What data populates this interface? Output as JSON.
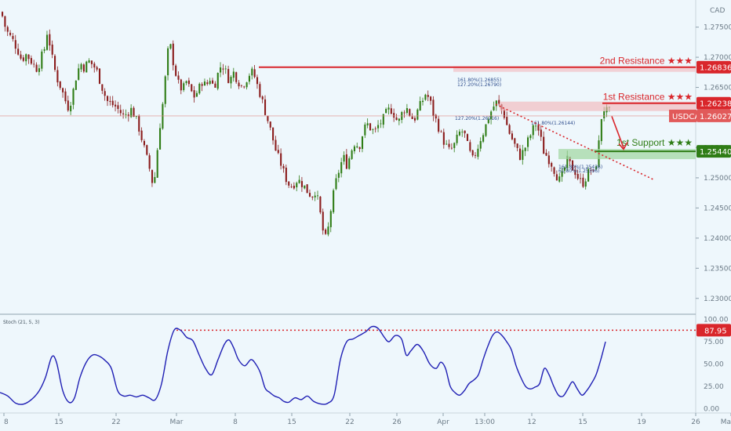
{
  "chart_data": {
    "type": "candlestick",
    "currency": "CAD",
    "symbol": "USDCAD",
    "ylim": [
      1.2275,
      1.2795
    ],
    "y_ticks": [
      "1.27500",
      "1.27000",
      "1.26500",
      "1.26000",
      "1.25500",
      "1.25000",
      "1.24500",
      "1.24000",
      "1.23500",
      "1.23000"
    ],
    "x_ticks": [
      "8",
      "15",
      "22",
      "Mar",
      "8",
      "15",
      "22",
      "26",
      "Apr",
      "13:00",
      "12",
      "15",
      "19",
      "26",
      "Ma"
    ],
    "levels": [
      {
        "name": "2nd Resistance ★★★",
        "value": "1.26836",
        "color": "#d9262b"
      },
      {
        "name": "1st Resistance ★★★",
        "value": "1.26238",
        "color": "#d9262b"
      },
      {
        "name": "1st Support ★★★",
        "value": "1.25440",
        "color": "#2f7d16"
      }
    ],
    "current_price": {
      "label": "USDCAD",
      "value": "1.26027"
    },
    "fib_labels": [
      "161.80%(1.26855)",
      "127.20%(1.26790)",
      "127.20%(1.26216)",
      "161.80%(1.26144)",
      "161.80%(1.25436)",
      "61.80%(1.25396)"
    ],
    "price_path": [
      [
        0,
        1.2775
      ],
      [
        5,
        1.277
      ],
      [
        10,
        1.2745
      ],
      [
        15,
        1.2735
      ],
      [
        20,
        1.2725
      ],
      [
        25,
        1.2712
      ],
      [
        30,
        1.2695
      ],
      [
        35,
        1.2705
      ],
      [
        40,
        1.2698
      ],
      [
        45,
        1.2688
      ],
      [
        50,
        1.268
      ],
      [
        55,
        1.27
      ],
      [
        60,
        1.2718
      ],
      [
        63,
        1.2748
      ],
      [
        66,
        1.272
      ],
      [
        70,
        1.269
      ],
      [
        75,
        1.2665
      ],
      [
        80,
        1.265
      ],
      [
        85,
        1.263
      ],
      [
        90,
        1.2615
      ],
      [
        95,
        1.264
      ],
      [
        100,
        1.2672
      ],
      [
        105,
        1.269
      ],
      [
        110,
        1.2682
      ],
      [
        115,
        1.2694
      ],
      [
        120,
        1.2688
      ],
      [
        125,
        1.268
      ],
      [
        130,
        1.266
      ],
      [
        135,
        1.264
      ],
      [
        140,
        1.2625
      ],
      [
        145,
        1.2622
      ],
      [
        150,
        1.2618
      ],
      [
        155,
        1.261
      ],
      [
        160,
        1.2602
      ],
      [
        165,
        1.2608
      ],
      [
        170,
        1.2614
      ],
      [
        175,
        1.26
      ],
      [
        180,
        1.258
      ],
      [
        185,
        1.2555
      ],
      [
        190,
        1.253
      ],
      [
        195,
        1.2505
      ],
      [
        198,
        1.248
      ],
      [
        201,
        1.252
      ],
      [
        205,
        1.2575
      ],
      [
        210,
        1.2625
      ],
      [
        215,
        1.269
      ],
      [
        218,
        1.273
      ],
      [
        222,
        1.27
      ],
      [
        225,
        1.268
      ],
      [
        230,
        1.2655
      ],
      [
        235,
        1.2645
      ],
      [
        240,
        1.266
      ],
      [
        245,
        1.2645
      ],
      [
        250,
        1.2635
      ],
      [
        255,
        1.2645
      ],
      [
        260,
        1.266
      ],
      [
        265,
        1.2652
      ],
      [
        270,
        1.2665
      ],
      [
        275,
        1.265
      ],
      [
        280,
        1.2672
      ],
      [
        285,
        1.269
      ],
      [
        290,
        1.2676
      ],
      [
        295,
        1.266
      ],
      [
        300,
        1.2675
      ],
      [
        305,
        1.2663
      ],
      [
        310,
        1.2652
      ],
      [
        315,
        1.266
      ],
      [
        320,
        1.2672
      ],
      [
        325,
        1.2676
      ],
      [
        330,
        1.2655
      ],
      [
        335,
        1.2635
      ],
      [
        340,
        1.2612
      ],
      [
        345,
        1.259
      ],
      [
        350,
        1.2565
      ],
      [
        355,
        1.254
      ],
      [
        360,
        1.2525
      ],
      [
        365,
        1.2505
      ],
      [
        370,
        1.249
      ],
      [
        375,
        1.2486
      ],
      [
        380,
        1.2496
      ],
      [
        385,
        1.2494
      ],
      [
        390,
        1.2486
      ],
      [
        395,
        1.2476
      ],
      [
        400,
        1.247
      ],
      [
        405,
        1.248
      ],
      [
        410,
        1.2445
      ],
      [
        415,
        1.2405
      ],
      [
        418,
        1.2398
      ],
      [
        421,
        1.2418
      ],
      [
        425,
        1.2455
      ],
      [
        430,
        1.249
      ],
      [
        435,
        1.2515
      ],
      [
        440,
        1.2535
      ],
      [
        445,
        1.252
      ],
      [
        450,
        1.2545
      ],
      [
        455,
        1.256
      ],
      [
        460,
        1.255
      ],
      [
        465,
        1.2575
      ],
      [
        470,
        1.259
      ],
      [
        475,
        1.2582
      ],
      [
        480,
        1.2575
      ],
      [
        485,
        1.2588
      ],
      [
        490,
        1.2595
      ],
      [
        495,
        1.2608
      ],
      [
        500,
        1.2615
      ],
      [
        505,
        1.2605
      ],
      [
        510,
        1.259
      ],
      [
        515,
        1.2608
      ],
      [
        520,
        1.2618
      ],
      [
        525,
        1.2605
      ],
      [
        530,
        1.2595
      ],
      [
        535,
        1.2612
      ],
      [
        540,
        1.2625
      ],
      [
        545,
        1.264
      ],
      [
        550,
        1.263
      ],
      [
        555,
        1.2605
      ],
      [
        560,
        1.259
      ],
      [
        565,
        1.257
      ],
      [
        570,
        1.2555
      ],
      [
        575,
        1.2545
      ],
      [
        580,
        1.255
      ],
      [
        585,
        1.2565
      ],
      [
        590,
        1.258
      ],
      [
        595,
        1.257
      ],
      [
        600,
        1.2545
      ],
      [
        605,
        1.253
      ],
      [
        610,
        1.2545
      ],
      [
        615,
        1.2565
      ],
      [
        620,
        1.258
      ],
      [
        625,
        1.26
      ],
      [
        630,
        1.2615
      ],
      [
        635,
        1.2625
      ],
      [
        640,
        1.2618
      ],
      [
        645,
        1.2605
      ],
      [
        650,
        1.258
      ],
      [
        655,
        1.2565
      ],
      [
        660,
        1.255
      ],
      [
        665,
        1.2535
      ],
      [
        670,
        1.2545
      ],
      [
        675,
        1.256
      ],
      [
        680,
        1.2575
      ],
      [
        685,
        1.259
      ],
      [
        690,
        1.2575
      ],
      [
        695,
        1.2545
      ],
      [
        700,
        1.2535
      ],
      [
        705,
        1.2525
      ],
      [
        710,
        1.251
      ],
      [
        715,
        1.2495
      ],
      [
        720,
        1.2505
      ],
      [
        725,
        1.253
      ],
      [
        730,
        1.252
      ],
      [
        735,
        1.2512
      ],
      [
        740,
        1.2498
      ],
      [
        745,
        1.249
      ],
      [
        750,
        1.2502
      ],
      [
        755,
        1.2515
      ],
      [
        760,
        1.2505
      ],
      [
        765,
        1.2545
      ],
      [
        768,
        1.259
      ],
      [
        771,
        1.2618
      ],
      [
        774,
        1.261
      ]
    ],
    "stochastic": {
      "label": "Stoch (21, 5, 3)",
      "ylim": [
        -5,
        105
      ],
      "y_ticks": [
        "100.00",
        "75.00",
        "50.00",
        "25.00",
        "0.00"
      ],
      "level_label": "87.95",
      "level": 87.95,
      "points": [
        [
          0,
          18
        ],
        [
          10,
          14
        ],
        [
          20,
          6
        ],
        [
          30,
          5
        ],
        [
          40,
          10
        ],
        [
          50,
          20
        ],
        [
          58,
          35
        ],
        [
          66,
          58
        ],
        [
          72,
          52
        ],
        [
          80,
          20
        ],
        [
          88,
          7
        ],
        [
          95,
          12
        ],
        [
          102,
          35
        ],
        [
          110,
          52
        ],
        [
          118,
          60
        ],
        [
          126,
          59
        ],
        [
          134,
          54
        ],
        [
          142,
          45
        ],
        [
          150,
          20
        ],
        [
          158,
          14
        ],
        [
          166,
          15
        ],
        [
          174,
          13
        ],
        [
          182,
          15
        ],
        [
          190,
          12
        ],
        [
          198,
          10
        ],
        [
          206,
          28
        ],
        [
          214,
          65
        ],
        [
          222,
          88
        ],
        [
          230,
          88
        ],
        [
          238,
          80
        ],
        [
          246,
          76
        ],
        [
          254,
          60
        ],
        [
          262,
          45
        ],
        [
          270,
          38
        ],
        [
          278,
          55
        ],
        [
          286,
          72
        ],
        [
          292,
          77
        ],
        [
          298,
          68
        ],
        [
          304,
          55
        ],
        [
          312,
          48
        ],
        [
          320,
          55
        ],
        [
          326,
          50
        ],
        [
          332,
          40
        ],
        [
          338,
          23
        ],
        [
          344,
          18
        ],
        [
          350,
          14
        ],
        [
          356,
          12
        ],
        [
          362,
          8
        ],
        [
          368,
          7
        ],
        [
          376,
          12
        ],
        [
          384,
          10
        ],
        [
          392,
          14
        ],
        [
          400,
          8
        ],
        [
          410,
          5
        ],
        [
          418,
          6
        ],
        [
          426,
          15
        ],
        [
          434,
          55
        ],
        [
          442,
          75
        ],
        [
          450,
          78
        ],
        [
          458,
          82
        ],
        [
          466,
          86
        ],
        [
          474,
          92
        ],
        [
          482,
          90
        ],
        [
          490,
          80
        ],
        [
          496,
          75
        ],
        [
          504,
          82
        ],
        [
          512,
          78
        ],
        [
          518,
          60
        ],
        [
          524,
          65
        ],
        [
          532,
          72
        ],
        [
          540,
          64
        ],
        [
          548,
          50
        ],
        [
          556,
          45
        ],
        [
          562,
          52
        ],
        [
          568,
          45
        ],
        [
          574,
          25
        ],
        [
          580,
          18
        ],
        [
          586,
          15
        ],
        [
          592,
          20
        ],
        [
          598,
          28
        ],
        [
          604,
          32
        ],
        [
          610,
          38
        ],
        [
          616,
          55
        ],
        [
          622,
          70
        ],
        [
          628,
          82
        ],
        [
          634,
          86
        ],
        [
          640,
          82
        ],
        [
          646,
          75
        ],
        [
          652,
          66
        ],
        [
          658,
          48
        ],
        [
          664,
          35
        ],
        [
          670,
          25
        ],
        [
          676,
          22
        ],
        [
          682,
          24
        ],
        [
          688,
          28
        ],
        [
          694,
          45
        ],
        [
          700,
          38
        ],
        [
          706,
          25
        ],
        [
          712,
          15
        ],
        [
          718,
          14
        ],
        [
          724,
          22
        ],
        [
          730,
          30
        ],
        [
          736,
          22
        ],
        [
          742,
          15
        ],
        [
          748,
          20
        ],
        [
          754,
          28
        ],
        [
          760,
          38
        ],
        [
          766,
          55
        ],
        [
          772,
          75
        ]
      ]
    },
    "forecast_arrow": {
      "from": [
        780,
        1.2602
      ],
      "to": [
        795,
        1.255
      ]
    }
  }
}
